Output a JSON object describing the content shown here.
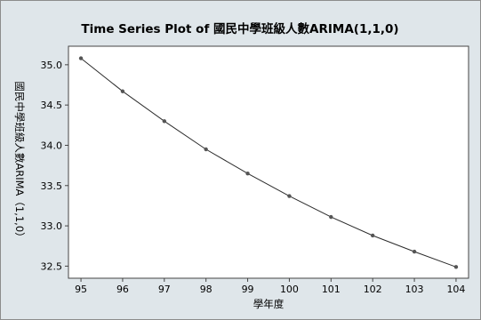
{
  "chart_data": {
    "type": "line",
    "title": "Time Series Plot of 國民中學班級人數ARIMA(1,1,0)",
    "xlabel": "學年度",
    "ylabel": "國民中學班級人數ARIMA（1,1,0）",
    "x": [
      95,
      96,
      97,
      98,
      99,
      100,
      101,
      102,
      103,
      104
    ],
    "y": [
      35.08,
      34.67,
      34.3,
      33.95,
      33.65,
      33.37,
      33.11,
      32.88,
      32.68,
      32.49
    ],
    "x_ticks": [
      "95",
      "96",
      "97",
      "98",
      "99",
      "100",
      "101",
      "102",
      "103",
      "104"
    ],
    "y_ticks": [
      "32.5",
      "33.0",
      "33.5",
      "34.0",
      "34.5",
      "35.0"
    ],
    "y_tick_values": [
      32.5,
      33.0,
      33.5,
      34.0,
      34.5,
      35.0
    ],
    "xlim": [
      94.7,
      104.3
    ],
    "ylim": [
      32.35,
      35.23
    ],
    "grid": false,
    "markers": true,
    "colors": {
      "line": "#2b2b2b",
      "marker": "#555555",
      "frame_bg": "#dfe6ea",
      "plot_bg": "#ffffff"
    }
  }
}
